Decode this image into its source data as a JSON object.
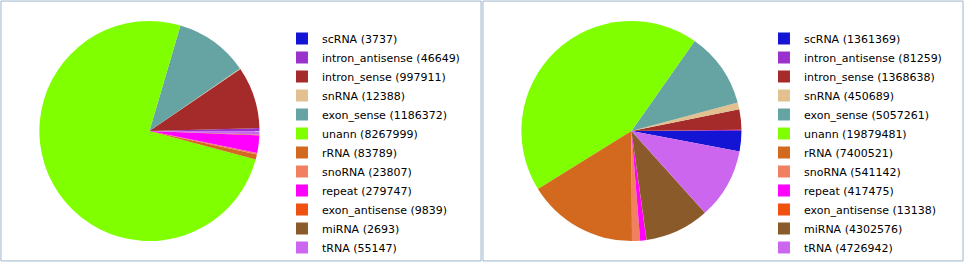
{
  "chart_data": [
    {
      "type": "pie",
      "categories": [
        "scRNA (3737)",
        "intron_antisense (46649)",
        "intron_sense (997911)",
        "snRNA (12388)",
        "exon_sense (1186372)",
        "unann (8267999)",
        "rRNA (83789)",
        "snoRNA (23807)",
        "repeat (279747)",
        "exon_antisense (9839)",
        "miRNA (2693)",
        "tRNA (55147)"
      ],
      "values": [
        3737,
        46649,
        997911,
        12388,
        1186372,
        8267999,
        83789,
        23807,
        279747,
        9839,
        2693,
        55147
      ],
      "colors": [
        "#1414d4",
        "#9933cc",
        "#a52a2a",
        "#e2c08f",
        "#66a3a3",
        "#80ff00",
        "#d2691e",
        "#f08060",
        "#ff00ff",
        "#f05010",
        "#8b5a2b",
        "#cc66ee"
      ],
      "legend": "right"
    },
    {
      "type": "pie",
      "categories": [
        "scRNA (1361369)",
        "intron_antisense (81259)",
        "intron_sense (1368638)",
        "snRNA (450689)",
        "exon_sense (5057261)",
        "unann (19879481)",
        "rRNA (7400521)",
        "snoRNA (541142)",
        "repeat (417475)",
        "exon_antisense (13138)",
        "miRNA (4302576)",
        "tRNA (4726942)"
      ],
      "values": [
        1361369,
        81259,
        1368638,
        450689,
        5057261,
        19879481,
        7400521,
        541142,
        417475,
        13138,
        4302576,
        4726942
      ],
      "colors": [
        "#1414d4",
        "#9933cc",
        "#a52a2a",
        "#e2c08f",
        "#66a3a3",
        "#80ff00",
        "#d2691e",
        "#f08060",
        "#ff00ff",
        "#f05010",
        "#8b5a2b",
        "#cc66ee"
      ],
      "legend": "right"
    }
  ]
}
